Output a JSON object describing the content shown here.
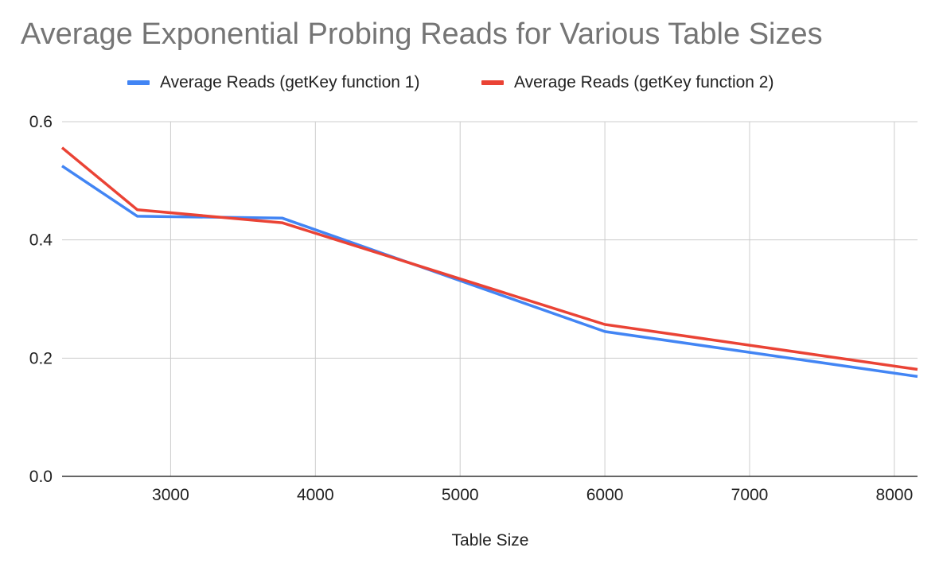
{
  "chart_data": {
    "type": "line",
    "title": "Average Exponential Probing Reads for Various Table Sizes",
    "xlabel": "Table Size",
    "ylabel": "",
    "xlim": [
      2250,
      8160
    ],
    "ylim": [
      0,
      0.6
    ],
    "x_ticks": [
      3000,
      4000,
      5000,
      6000,
      7000,
      8000
    ],
    "y_ticks": [
      0.0,
      0.2,
      0.4,
      0.6
    ],
    "x_tick_labels": [
      "3000",
      "4000",
      "5000",
      "6000",
      "7000",
      "8000"
    ],
    "y_tick_labels": [
      "0.0",
      "0.2",
      "0.4",
      "0.6"
    ],
    "grid": true,
    "legend_position": "top",
    "series": [
      {
        "name": "Average Reads (getKey function 1)",
        "color": "#4285F4",
        "x": [
          2250,
          2770,
          3770,
          6000,
          8160
        ],
        "y": [
          0.525,
          0.44,
          0.437,
          0.245,
          0.169
        ]
      },
      {
        "name": "Average Reads (getKey function 2)",
        "color": "#EA4335",
        "x": [
          2250,
          2770,
          3770,
          6000,
          8160
        ],
        "y": [
          0.556,
          0.451,
          0.429,
          0.257,
          0.181
        ]
      }
    ]
  }
}
